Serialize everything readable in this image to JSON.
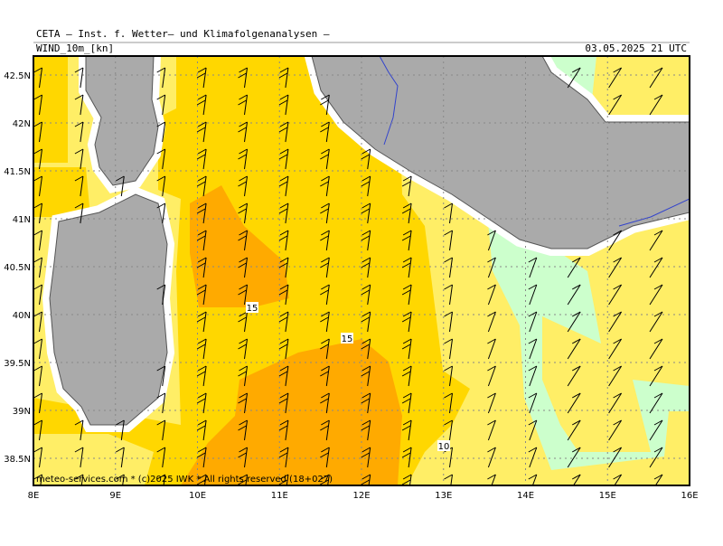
{
  "header": {
    "title": "CETA — Inst. f. Wetter— und Klimafolgenanalysen —",
    "field": "WIND_10m_[kn]",
    "valid": "03.05.2025 21 UTC"
  },
  "map": {
    "lat_labels": [
      "42.5N",
      "42N",
      "41.5N",
      "41N",
      "40.5N",
      "40N",
      "39.5N",
      "39N",
      "38.5N"
    ],
    "lon_labels": [
      "8E",
      "9E",
      "10E",
      "11E",
      "12E",
      "13E",
      "14E",
      "15E",
      "16E"
    ],
    "contour_labels": [
      15,
      15,
      10
    ],
    "credit": "meteo-services.com * (c)2025 IWK * All rights reserved (18+027)"
  }
}
